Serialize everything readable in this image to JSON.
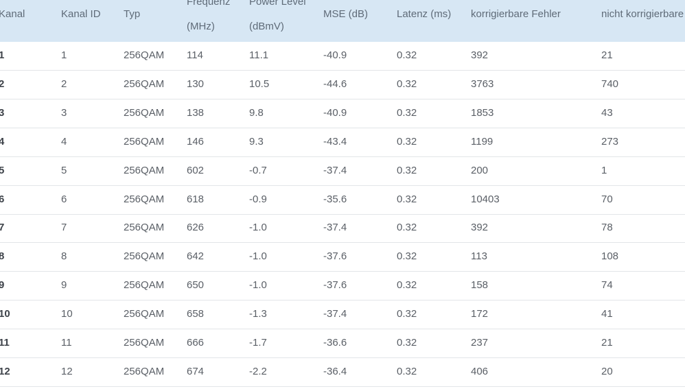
{
  "table": {
    "header": [
      [
        "Kanal"
      ],
      [
        "Kanal ID"
      ],
      [
        "Typ"
      ],
      [
        "Frequenz",
        "(MHz)"
      ],
      [
        "Power Level",
        "(dBmV)"
      ],
      [
        "MSE (dB)"
      ],
      [
        "Latenz (ms)"
      ],
      [
        "korrigierbare Fehler"
      ],
      [
        "nicht korrigierbare"
      ]
    ],
    "rows": [
      [
        "1",
        "1",
        "256QAM",
        "114",
        "11.1",
        "-40.9",
        "0.32",
        "392",
        "21"
      ],
      [
        "2",
        "2",
        "256QAM",
        "130",
        "10.5",
        "-44.6",
        "0.32",
        "3763",
        "740"
      ],
      [
        "3",
        "3",
        "256QAM",
        "138",
        "9.8",
        "-40.9",
        "0.32",
        "1853",
        "43"
      ],
      [
        "4",
        "4",
        "256QAM",
        "146",
        "9.3",
        "-43.4",
        "0.32",
        "1199",
        "273"
      ],
      [
        "5",
        "5",
        "256QAM",
        "602",
        "-0.7",
        "-37.4",
        "0.32",
        "200",
        "1"
      ],
      [
        "6",
        "6",
        "256QAM",
        "618",
        "-0.9",
        "-35.6",
        "0.32",
        "10403",
        "70"
      ],
      [
        "7",
        "7",
        "256QAM",
        "626",
        "-1.0",
        "-37.4",
        "0.32",
        "392",
        "78"
      ],
      [
        "8",
        "8",
        "256QAM",
        "642",
        "-1.0",
        "-37.6",
        "0.32",
        "113",
        "108"
      ],
      [
        "9",
        "9",
        "256QAM",
        "650",
        "-1.0",
        "-37.6",
        "0.32",
        "158",
        "74"
      ],
      [
        "10",
        "10",
        "256QAM",
        "658",
        "-1.3",
        "-37.4",
        "0.32",
        "172",
        "41"
      ],
      [
        "11",
        "11",
        "256QAM",
        "666",
        "-1.7",
        "-36.6",
        "0.32",
        "237",
        "21"
      ],
      [
        "12",
        "12",
        "256QAM",
        "674",
        "-2.2",
        "-36.4",
        "0.32",
        "406",
        "20"
      ]
    ]
  }
}
